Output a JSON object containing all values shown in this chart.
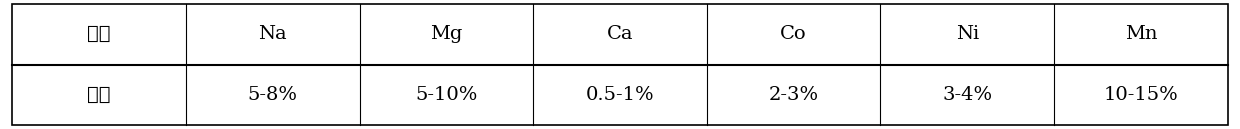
{
  "headers": [
    "元素",
    "Na",
    "Mg",
    "Ca",
    "Co",
    "Ni",
    "Mn"
  ],
  "row2": [
    "含量",
    "5-8%",
    "5-10%",
    "0.5-1%",
    "2-3%",
    "3-4%",
    "10-15%"
  ],
  "background_color": "#ffffff",
  "border_color": "#000000",
  "text_color": "#000000",
  "font_size": 14,
  "outer_border_lw": 1.2,
  "inner_border_lw": 0.8,
  "row_divider_lw": 1.5
}
